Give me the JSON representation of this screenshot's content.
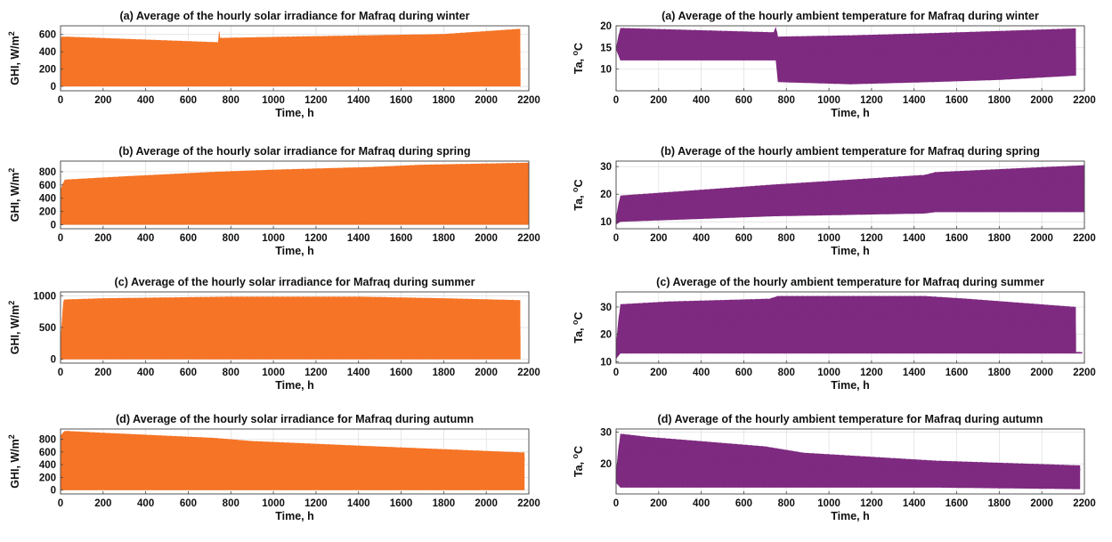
{
  "figure": {
    "xlabel": "Time, h",
    "colors": {
      "irradiance": "#F57426",
      "temperature": "#7E2A80"
    }
  },
  "chart_data": [
    {
      "type": "area",
      "title": "(a) Average of the hourly solar irradiance for Mafraq during winter",
      "xlabel": "Time, h",
      "ylabel_main": "GHI, W/m",
      "ylabel_sup": "2",
      "xlim": [
        0,
        2200
      ],
      "ylim": [
        -50,
        700
      ],
      "x_ticks": [
        0,
        200,
        400,
        600,
        800,
        1000,
        1200,
        1400,
        1600,
        1800,
        2000,
        2200
      ],
      "y_ticks": [
        0,
        200,
        400,
        600
      ],
      "grid": true,
      "series": [
        {
          "color": "#F57426",
          "x_end": 2160,
          "x": [
            0,
            20,
            740,
            745,
            750,
            1080,
            1800,
            2160
          ],
          "peak": [
            570,
            575,
            510,
            660,
            560,
            575,
            605,
            665
          ],
          "low": [
            0,
            0,
            0,
            0,
            0,
            0,
            0,
            0
          ]
        }
      ]
    },
    {
      "type": "area",
      "title": "(a) Average of the hourly ambient temperature for Mafraq during winter",
      "xlabel": "Time, h",
      "ylabel_main": "Ta, ",
      "ylabel_sup": "o",
      "ylabel_tail": "C",
      "xlim": [
        0,
        2200
      ],
      "ylim": [
        5,
        20
      ],
      "x_ticks": [
        0,
        200,
        400,
        600,
        800,
        1000,
        1200,
        1400,
        1600,
        1800,
        2000,
        2200
      ],
      "y_ticks": [
        10,
        15,
        20
      ],
      "grid": true,
      "series": [
        {
          "color": "#7E2A80",
          "x_end": 2160,
          "x": [
            0,
            20,
            740,
            750,
            760,
            1100,
            1480,
            1800,
            2160
          ],
          "peak": [
            15,
            19.5,
            18.5,
            19.8,
            17.5,
            17.8,
            18.3,
            18.8,
            19.4
          ],
          "low": [
            14.5,
            12,
            12,
            12,
            7,
            6.5,
            7,
            7.5,
            8.5
          ]
        }
      ]
    },
    {
      "type": "area",
      "title": "(b) Average of the hourly solar irradiance for Mafraq during spring",
      "xlabel": "Time, h",
      "ylabel_main": "GHI, W/m",
      "ylabel_sup": "2",
      "xlim": [
        0,
        2200
      ],
      "ylim": [
        -60,
        960
      ],
      "x_ticks": [
        0,
        200,
        400,
        600,
        800,
        1000,
        1200,
        1400,
        1600,
        1800,
        2000,
        2200
      ],
      "y_ticks": [
        0,
        200,
        400,
        600,
        800
      ],
      "grid": true,
      "series": [
        {
          "color": "#F57426",
          "x_end": 2200,
          "x": [
            0,
            20,
            300,
            740,
            1000,
            1450,
            1700,
            2200
          ],
          "peak": [
            540,
            680,
            730,
            800,
            830,
            870,
            905,
            935
          ],
          "low": [
            0,
            0,
            0,
            0,
            0,
            0,
            0,
            0
          ]
        }
      ]
    },
    {
      "type": "area",
      "title": "(b) Average of the hourly ambient temperature for Mafraq during spring",
      "xlabel": "Time, h",
      "ylabel_main": "Ta, ",
      "ylabel_sup": "o",
      "ylabel_tail": "C",
      "xlim": [
        0,
        2200
      ],
      "ylim": [
        7.5,
        32
      ],
      "x_ticks": [
        0,
        200,
        400,
        600,
        800,
        1000,
        1200,
        1400,
        1600,
        1800,
        2000,
        2200
      ],
      "y_ticks": [
        10,
        20,
        30
      ],
      "grid": true,
      "series": [
        {
          "color": "#7E2A80",
          "x_end": 2200,
          "x": [
            0,
            20,
            740,
            1450,
            1500,
            2200
          ],
          "peak": [
            12,
            19.5,
            23.5,
            27,
            28,
            30.5
          ],
          "low": [
            9,
            10,
            12,
            13,
            13.5,
            13.5
          ]
        }
      ]
    },
    {
      "type": "area",
      "title": "(c) Average of the hourly solar irradiance for Mafraq during summer",
      "xlabel": "Time, h",
      "ylabel_main": "GHI, W/m",
      "ylabel_sup": "2",
      "xlim": [
        0,
        2200
      ],
      "ylim": [
        -60,
        1060
      ],
      "x_ticks": [
        0,
        200,
        400,
        600,
        800,
        1000,
        1200,
        1400,
        1600,
        1800,
        2000,
        2200
      ],
      "y_ticks": [
        0,
        500,
        1000
      ],
      "grid": true,
      "series": [
        {
          "color": "#F57426",
          "x_end": 2160,
          "x": [
            0,
            15,
            200,
            800,
            1400,
            1800,
            2160
          ],
          "peak": [
            330,
            940,
            960,
            985,
            985,
            960,
            930
          ],
          "low": [
            0,
            0,
            0,
            0,
            0,
            0,
            0
          ]
        }
      ]
    },
    {
      "type": "area",
      "title": "(c) Average of the hourly ambient temperature for Mafraq during summer",
      "xlabel": "Time, h",
      "ylabel_main": "Ta, ",
      "ylabel_sup": "o",
      "ylabel_tail": "C",
      "xlim": [
        0,
        2200
      ],
      "ylim": [
        9.5,
        35.5
      ],
      "x_ticks": [
        0,
        200,
        400,
        600,
        800,
        1000,
        1200,
        1400,
        1600,
        1800,
        2000,
        2200
      ],
      "y_ticks": [
        10,
        20,
        30
      ],
      "grid": true,
      "series": [
        {
          "color": "#7E2A80",
          "x_end": 2160,
          "x": [
            0,
            20,
            250,
            720,
            760,
            1450,
            1650,
            2160
          ],
          "peak": [
            17,
            31,
            32,
            33,
            34,
            34,
            33,
            30
          ],
          "low": [
            11,
            13,
            13,
            13,
            13,
            13,
            13,
            13
          ]
        },
        {
          "color": "#7E2A80",
          "x_end": 2190,
          "x": [
            2160,
            2190
          ],
          "peak": [
            13.5,
            13.5
          ],
          "low": [
            13,
            13
          ]
        }
      ]
    },
    {
      "type": "area",
      "title": "(d) Average of the hourly solar irradiance for Mafraq during autumn",
      "xlabel": "Time, h",
      "ylabel_main": "GHI, W/m",
      "ylabel_sup": "2",
      "xlim": [
        0,
        2200
      ],
      "ylim": [
        -60,
        960
      ],
      "x_ticks": [
        0,
        200,
        400,
        600,
        800,
        1000,
        1200,
        1400,
        1600,
        1800,
        2000,
        2200
      ],
      "y_ticks": [
        0,
        200,
        400,
        600,
        800
      ],
      "grid": true,
      "series": [
        {
          "color": "#F57426",
          "x_end": 2180,
          "x": [
            0,
            20,
            200,
            720,
            900,
            1600,
            2180
          ],
          "peak": [
            860,
            930,
            900,
            820,
            770,
            670,
            590
          ],
          "low": [
            0,
            0,
            0,
            0,
            0,
            0,
            0
          ]
        }
      ]
    },
    {
      "type": "area",
      "title": "(d) Average of the hourly ambient temperature for Mafraq during autumn",
      "xlabel": "Time, h",
      "ylabel_main": "Ta, ",
      "ylabel_sup": "o",
      "ylabel_tail": "C",
      "xlim": [
        0,
        2200
      ],
      "ylim": [
        10.5,
        31
      ],
      "x_ticks": [
        0,
        200,
        400,
        600,
        800,
        1000,
        1200,
        1400,
        1600,
        1800,
        2000,
        2200
      ],
      "y_ticks": [
        20,
        30
      ],
      "grid": true,
      "series": [
        {
          "color": "#7E2A80",
          "x_end": 2180,
          "x": [
            0,
            20,
            150,
            700,
            880,
            1500,
            2180
          ],
          "peak": [
            18,
            29.5,
            28.5,
            25.5,
            23.5,
            21,
            19.5
          ],
          "low": [
            14,
            12.5,
            12.5,
            12.5,
            12.5,
            12.5,
            12
          ]
        }
      ]
    }
  ]
}
